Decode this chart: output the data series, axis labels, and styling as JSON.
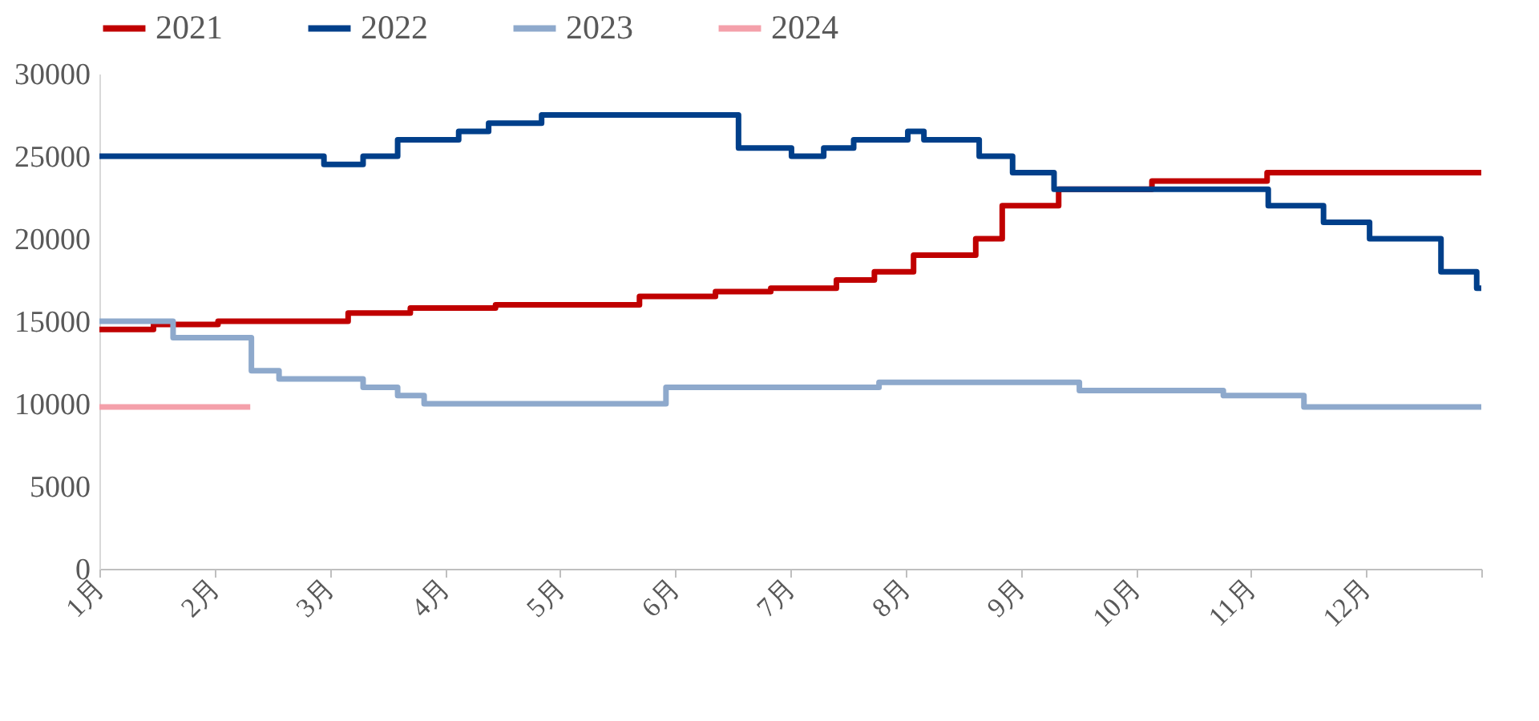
{
  "chart_data": {
    "type": "step",
    "legend": "top",
    "xlim": [
      1,
      13
    ],
    "xticks": [
      {
        "value": 1,
        "label": "1月"
      },
      {
        "value": 2,
        "label": "2月"
      },
      {
        "value": 3,
        "label": "3月"
      },
      {
        "value": 4,
        "label": "4月"
      },
      {
        "value": 5,
        "label": "5月"
      },
      {
        "value": 6,
        "label": "6月"
      },
      {
        "value": 7,
        "label": "7月"
      },
      {
        "value": 8,
        "label": "8月"
      },
      {
        "value": 9,
        "label": "9月"
      },
      {
        "value": 10,
        "label": "10月"
      },
      {
        "value": 11,
        "label": "11月"
      },
      {
        "value": 12,
        "label": "12月"
      },
      {
        "value": 13,
        "label": null
      }
    ],
    "ylim": [
      0,
      30000
    ],
    "yticks": [
      0,
      5000,
      10000,
      15000,
      20000,
      25000,
      30000
    ],
    "series": [
      {
        "name": "2021",
        "color": "#c00000",
        "x": [
          1,
          1.47,
          2.03,
          3.16,
          3.7,
          4.44,
          5.69,
          6.35,
          6.83,
          7.4,
          7.73,
          8.07,
          8.61,
          8.84,
          9.33,
          10.14,
          11.14,
          13
        ],
        "values": [
          14500,
          14800,
          15000,
          15500,
          15800,
          16000,
          16500,
          16800,
          17000,
          17500,
          18000,
          19000,
          20000,
          22000,
          23000,
          23500,
          24000,
          24000
        ]
      },
      {
        "name": "2022",
        "color": "#003f8a",
        "x": [
          1,
          2.95,
          3.29,
          3.59,
          4.12,
          4.38,
          4.84,
          6.55,
          7.01,
          7.29,
          7.55,
          8.02,
          8.16,
          8.64,
          8.93,
          9.29,
          11.15,
          11.63,
          12.03,
          12.65,
          12.96,
          13
        ],
        "values": [
          25000,
          24500,
          25000,
          26000,
          26500,
          27000,
          27500,
          25500,
          25000,
          25500,
          26000,
          26500,
          26000,
          25000,
          24000,
          23000,
          22000,
          21000,
          20000,
          18000,
          17000,
          17000
        ]
      },
      {
        "name": "2023",
        "color": "#8ea9cc",
        "x": [
          1,
          1.64,
          2.32,
          2.56,
          3.29,
          3.59,
          3.82,
          5.92,
          7.77,
          9.51,
          10.76,
          11.46,
          13
        ],
        "values": [
          15000,
          14000,
          12000,
          11500,
          11000,
          10500,
          10000,
          11000,
          11300,
          10800,
          10500,
          9800,
          9800
        ]
      },
      {
        "name": "2024",
        "color": "#f4a0aa",
        "x": [
          1,
          2.31
        ],
        "values": [
          9800,
          9800
        ]
      }
    ]
  }
}
